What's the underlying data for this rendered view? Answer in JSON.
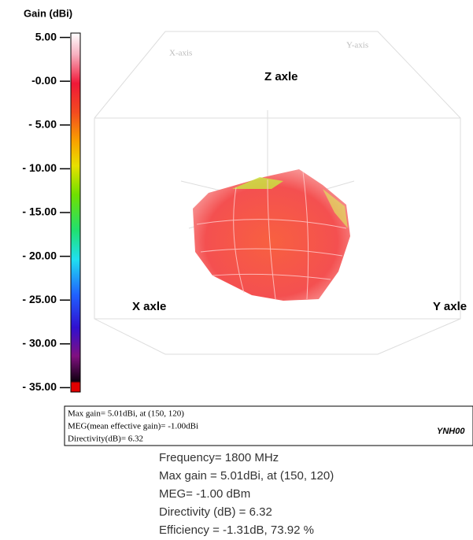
{
  "chart_data": {
    "type": "colorbar3d",
    "title": "Gain (dBi)",
    "ylim": [
      -35.5,
      5.5
    ],
    "yticks": [
      {
        "value": 5,
        "label": "5.00"
      },
      {
        "value": 0,
        "label": "-0.00"
      },
      {
        "value": -5,
        "label": "- 5.00"
      },
      {
        "value": -10,
        "label": "- 10.00"
      },
      {
        "value": -15,
        "label": "- 15.00"
      },
      {
        "value": -20,
        "label": "- 20.00"
      },
      {
        "value": -25,
        "label": "- 25.00"
      },
      {
        "value": -30,
        "label": "- 30.00"
      },
      {
        "value": -35,
        "label": "- 35.00"
      }
    ],
    "axis_labels": {
      "z": "Z axle",
      "x": "X axle",
      "y": "Y axle",
      "x_faint": "X-axis",
      "y_faint": "Y-axis"
    }
  },
  "info_box": {
    "lines": [
      "Max gain= 5.01dBi, at (150, 120)",
      "MEG(mean effective gain)= -1.00dBi",
      "Directivity(dB)= 6.32"
    ],
    "tag": "YNH00"
  },
  "caption": [
    "Frequency= 1800 MHz",
    "Max gain = 5.01dBi, at (150, 120)",
    "MEG= -1.00 dBm",
    "Directivity (dB) = 6.32",
    "Efficiency = -1.31dB, 73.92 %"
  ]
}
